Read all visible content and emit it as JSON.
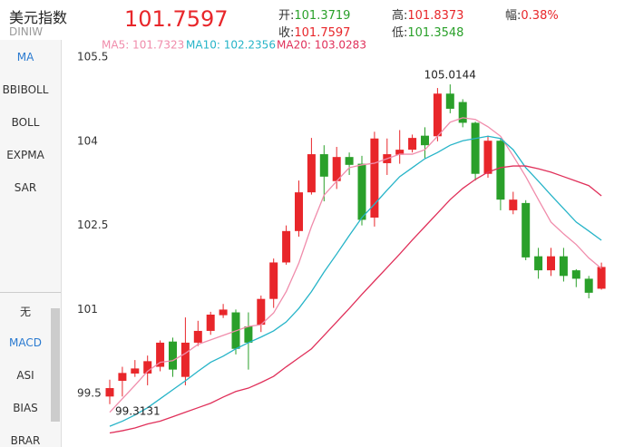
{
  "header": {
    "name": "美元指数",
    "code": "DINIW",
    "price": "101.7597",
    "stats": [
      {
        "label": "开:",
        "value": "101.3719"
      },
      {
        "label": "收:",
        "value": "101.7597"
      },
      {
        "label": "高:",
        "value": "101.8373"
      },
      {
        "label": "低:",
        "value": "101.3548"
      },
      {
        "label": "幅:",
        "value": "0.38%"
      }
    ]
  },
  "sidebar": {
    "main": [
      "MA",
      "BBIBOLL",
      "BOLL",
      "EXPMA",
      "SAR"
    ],
    "sub": [
      "无",
      "MACD",
      "ASI",
      "BIAS",
      "BRAR"
    ]
  },
  "chart_data": {
    "type": "candlestick",
    "ylim": [
      98.55,
      105.63
    ],
    "yticks": [
      105.5,
      104,
      102.5,
      101,
      99.5
    ],
    "grid": false,
    "up_color": "#e8262a",
    "down_color": "#2aa02a",
    "open": [
      99.45,
      99.73,
      99.86,
      99.86,
      99.98,
      100.43,
      99.8,
      100.41,
      100.62,
      100.9,
      100.95,
      100.7,
      100.73,
      101.19,
      101.84,
      102.4,
      103.09,
      103.77,
      103.29,
      103.72,
      103.6,
      102.64,
      103.61,
      103.76,
      103.85,
      104.1,
      104.09,
      104.85,
      104.7,
      104.33,
      103.42,
      104.01,
      102.77,
      102.9,
      101.95,
      101.7,
      101.95,
      101.7,
      101.55,
      101.3719
    ],
    "high": [
      99.75,
      99.98,
      100.1,
      100.18,
      100.45,
      100.5,
      100.86,
      100.8,
      100.96,
      101.1,
      101.0,
      100.95,
      101.25,
      101.91,
      102.5,
      103.3,
      104.06,
      103.93,
      103.9,
      103.8,
      103.74,
      104.17,
      104.05,
      104.2,
      104.12,
      104.25,
      104.95,
      105.0144,
      104.75,
      104.35,
      104.1,
      104.05,
      103.1,
      102.95,
      102.1,
      102.1,
      102.1,
      101.72,
      101.6,
      101.8373
    ],
    "low": [
      99.3131,
      99.45,
      99.8,
      99.65,
      99.9,
      99.8,
      99.65,
      100.35,
      100.55,
      100.85,
      100.2,
      99.93,
      100.6,
      101.03,
      101.8,
      102.3,
      103.05,
      102.93,
      103.15,
      103.4,
      102.5,
      102.48,
      103.4,
      103.6,
      103.8,
      103.7,
      104.0,
      104.5,
      104.25,
      103.3,
      103.35,
      102.77,
      102.7,
      101.88,
      101.55,
      101.6,
      101.5,
      101.4,
      101.2,
      101.3548
    ],
    "close": [
      99.6,
      99.87,
      99.95,
      100.08,
      100.41,
      99.93,
      100.41,
      100.62,
      100.91,
      101.0,
      100.3,
      100.41,
      101.19,
      101.84,
      102.4,
      103.09,
      103.77,
      103.37,
      103.72,
      103.58,
      102.6,
      104.05,
      103.77,
      103.85,
      104.06,
      103.93,
      104.85,
      104.58,
      104.33,
      103.42,
      104.01,
      102.96,
      102.96,
      101.93,
      101.7,
      101.95,
      101.6,
      101.55,
      101.3,
      101.7597
    ],
    "series": [
      {
        "name": "MA5: 101.7323",
        "color": "#f08cab",
        "values": [
          99.17,
          99.41,
          99.65,
          99.9,
          100.06,
          100.09,
          100.22,
          100.38,
          100.46,
          100.54,
          100.62,
          100.7,
          100.73,
          100.94,
          101.32,
          101.83,
          102.48,
          103.04,
          103.29,
          103.53,
          103.58,
          103.61,
          103.69,
          103.77,
          103.77,
          103.85,
          104.09,
          104.34,
          104.42,
          104.39,
          104.26,
          104.09,
          103.74,
          103.37,
          102.96,
          102.56,
          102.35,
          102.16,
          101.92,
          101.7323
        ]
      },
      {
        "name": "MA10: 102.2356",
        "color": "#26b4c8",
        "values": [
          98.92,
          99.01,
          99.12,
          99.25,
          99.41,
          99.57,
          99.73,
          99.9,
          100.06,
          100.17,
          100.3,
          100.41,
          100.51,
          100.62,
          100.78,
          101.02,
          101.32,
          101.67,
          101.99,
          102.32,
          102.64,
          102.88,
          103.13,
          103.37,
          103.53,
          103.69,
          103.8,
          103.93,
          104.01,
          104.05,
          104.09,
          104.05,
          103.85,
          103.53,
          103.29,
          103.04,
          102.8,
          102.56,
          102.4,
          102.2356
        ]
      },
      {
        "name": "MA20: 103.0283",
        "color": "#e0305a",
        "values": [
          98.8,
          98.84,
          98.89,
          98.96,
          99.01,
          99.09,
          99.17,
          99.25,
          99.33,
          99.44,
          99.54,
          99.6,
          99.7,
          99.81,
          99.98,
          100.14,
          100.3,
          100.54,
          100.78,
          101.02,
          101.27,
          101.51,
          101.75,
          101.99,
          102.24,
          102.48,
          102.72,
          102.96,
          103.16,
          103.32,
          103.45,
          103.53,
          103.56,
          103.56,
          103.51,
          103.45,
          103.37,
          103.29,
          103.21,
          103.0283
        ]
      }
    ],
    "annotations": [
      "105.0144",
      "99.3131"
    ]
  }
}
